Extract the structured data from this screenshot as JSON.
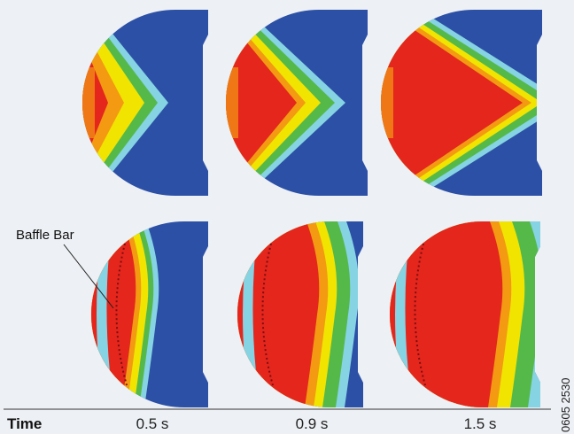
{
  "figure": {
    "annotation": "Baffle Bar",
    "time_label": "Time",
    "times": [
      "0.5 s",
      "0.9 s",
      "1.5 s"
    ],
    "figure_id": "0605 2530"
  }
}
